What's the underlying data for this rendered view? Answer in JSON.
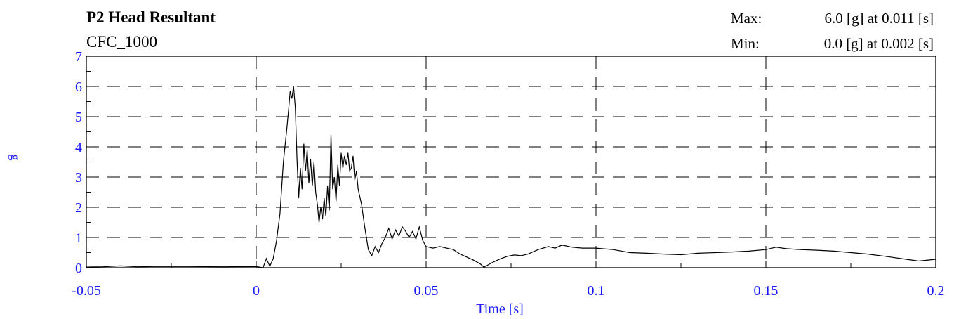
{
  "chart_data": {
    "type": "line",
    "title": "P2 Head Resultant",
    "subtitle": "CFC_1000",
    "xlabel": "Time [s]",
    "ylabel": "g",
    "xlim": [
      -0.05,
      0.2
    ],
    "ylim": [
      0,
      7
    ],
    "x_ticks": [
      "-0.05",
      "0",
      "0.05",
      "0.1",
      "0.15",
      "0.2"
    ],
    "y_ticks": [
      "0",
      "1",
      "2",
      "3",
      "4",
      "5",
      "6",
      "7"
    ],
    "grid": true,
    "stats": {
      "max_label": "Max:",
      "max_value": "6.0 [g] at 0.011 [s]",
      "min_label": "Min:",
      "min_value": "0.0 [g] at 0.002 [s]"
    },
    "series": [
      {
        "color": "#000000",
        "points": [
          [
            -0.05,
            0.02
          ],
          [
            -0.045,
            0.03
          ],
          [
            -0.04,
            0.06
          ],
          [
            -0.035,
            0.03
          ],
          [
            -0.03,
            0.04
          ],
          [
            -0.02,
            0.04
          ],
          [
            -0.01,
            0.03
          ],
          [
            0.0,
            0.04
          ],
          [
            0.002,
            0.0
          ],
          [
            0.003,
            0.3
          ],
          [
            0.004,
            0.05
          ],
          [
            0.005,
            0.3
          ],
          [
            0.006,
            0.9
          ],
          [
            0.007,
            1.8
          ],
          [
            0.008,
            3.5
          ],
          [
            0.009,
            4.6
          ],
          [
            0.0095,
            5.2
          ],
          [
            0.01,
            5.85
          ],
          [
            0.0105,
            5.6
          ],
          [
            0.011,
            6.0
          ],
          [
            0.0115,
            5.3
          ],
          [
            0.012,
            3.6
          ],
          [
            0.0125,
            2.3
          ],
          [
            0.013,
            3.3
          ],
          [
            0.0135,
            2.6
          ],
          [
            0.014,
            4.1
          ],
          [
            0.0145,
            3.2
          ],
          [
            0.015,
            3.9
          ],
          [
            0.0155,
            2.8
          ],
          [
            0.016,
            3.6
          ],
          [
            0.0165,
            2.7
          ],
          [
            0.017,
            3.5
          ],
          [
            0.0175,
            2.5
          ],
          [
            0.018,
            2.1
          ],
          [
            0.0185,
            1.5
          ],
          [
            0.019,
            2.0
          ],
          [
            0.0195,
            1.6
          ],
          [
            0.02,
            2.3
          ],
          [
            0.0205,
            1.7
          ],
          [
            0.021,
            2.7
          ],
          [
            0.0215,
            1.9
          ],
          [
            0.022,
            4.4
          ],
          [
            0.0225,
            2.6
          ],
          [
            0.023,
            3.0
          ],
          [
            0.0235,
            2.2
          ],
          [
            0.024,
            3.4
          ],
          [
            0.0245,
            2.7
          ],
          [
            0.025,
            3.8
          ],
          [
            0.0255,
            3.3
          ],
          [
            0.026,
            3.7
          ],
          [
            0.0265,
            3.4
          ],
          [
            0.027,
            3.8
          ],
          [
            0.0275,
            3.2
          ],
          [
            0.028,
            3.3
          ],
          [
            0.0285,
            3.7
          ],
          [
            0.029,
            2.9
          ],
          [
            0.0295,
            3.2
          ],
          [
            0.03,
            2.6
          ],
          [
            0.031,
            2.1
          ],
          [
            0.032,
            1.3
          ],
          [
            0.033,
            0.6
          ],
          [
            0.034,
            0.4
          ],
          [
            0.035,
            0.7
          ],
          [
            0.036,
            0.5
          ],
          [
            0.037,
            0.8
          ],
          [
            0.038,
            1.0
          ],
          [
            0.039,
            1.3
          ],
          [
            0.04,
            0.95
          ],
          [
            0.041,
            1.25
          ],
          [
            0.042,
            1.05
          ],
          [
            0.043,
            1.35
          ],
          [
            0.044,
            1.2
          ],
          [
            0.045,
            1.0
          ],
          [
            0.046,
            1.2
          ],
          [
            0.047,
            0.95
          ],
          [
            0.048,
            1.35
          ],
          [
            0.049,
            0.9
          ],
          [
            0.05,
            0.7
          ],
          [
            0.052,
            0.65
          ],
          [
            0.054,
            0.7
          ],
          [
            0.056,
            0.65
          ],
          [
            0.058,
            0.6
          ],
          [
            0.06,
            0.45
          ],
          [
            0.062,
            0.35
          ],
          [
            0.064,
            0.25
          ],
          [
            0.066,
            0.12
          ],
          [
            0.067,
            0.02
          ],
          [
            0.068,
            0.08
          ],
          [
            0.07,
            0.2
          ],
          [
            0.072,
            0.3
          ],
          [
            0.074,
            0.38
          ],
          [
            0.076,
            0.42
          ],
          [
            0.078,
            0.4
          ],
          [
            0.08,
            0.45
          ],
          [
            0.083,
            0.6
          ],
          [
            0.086,
            0.7
          ],
          [
            0.088,
            0.65
          ],
          [
            0.09,
            0.75
          ],
          [
            0.093,
            0.68
          ],
          [
            0.096,
            0.65
          ],
          [
            0.1,
            0.65
          ],
          [
            0.105,
            0.6
          ],
          [
            0.11,
            0.5
          ],
          [
            0.115,
            0.48
          ],
          [
            0.12,
            0.45
          ],
          [
            0.125,
            0.43
          ],
          [
            0.13,
            0.48
          ],
          [
            0.135,
            0.5
          ],
          [
            0.14,
            0.52
          ],
          [
            0.145,
            0.55
          ],
          [
            0.15,
            0.6
          ],
          [
            0.153,
            0.68
          ],
          [
            0.156,
            0.63
          ],
          [
            0.16,
            0.6
          ],
          [
            0.165,
            0.58
          ],
          [
            0.17,
            0.55
          ],
          [
            0.175,
            0.5
          ],
          [
            0.18,
            0.45
          ],
          [
            0.185,
            0.38
          ],
          [
            0.19,
            0.3
          ],
          [
            0.195,
            0.22
          ],
          [
            0.2,
            0.28
          ]
        ]
      }
    ]
  }
}
